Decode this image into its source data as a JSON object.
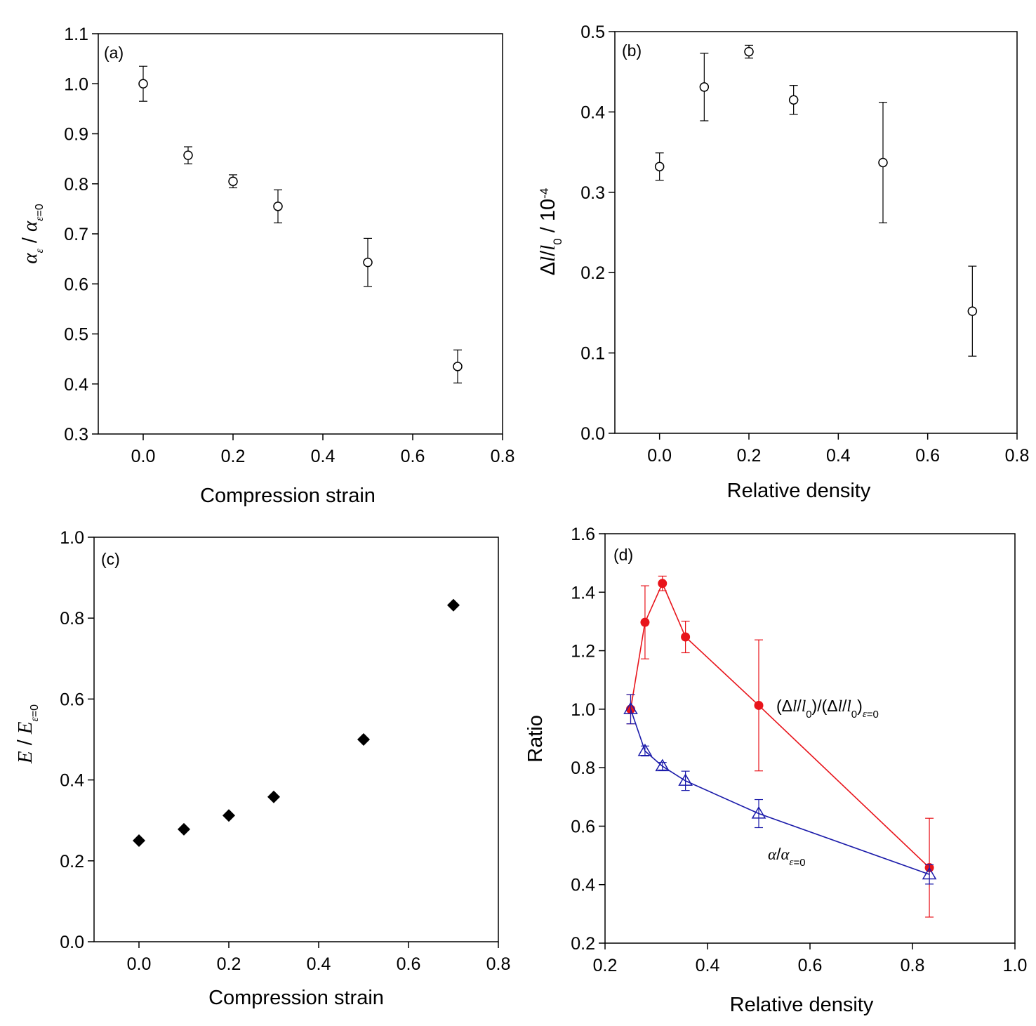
{
  "chart_data": [
    {
      "type": "scatter",
      "panel_label": "(a)",
      "xlabel": "Compression strain",
      "ylabel": "α_ε / α_ε=0",
      "xlim": [
        -0.1,
        0.8
      ],
      "ylim": [
        0.3,
        1.1
      ],
      "xticks": [
        "0.0",
        "0.2",
        "0.4",
        "0.6",
        "0.8"
      ],
      "yticks": [
        "0.3",
        "0.4",
        "0.5",
        "0.6",
        "0.7",
        "0.8",
        "0.9",
        "1.0",
        "1.1"
      ],
      "series": [
        {
          "marker": "open-circle",
          "x": [
            0.0,
            0.1,
            0.2,
            0.3,
            0.5,
            0.7
          ],
          "y": [
            1.0,
            0.857,
            0.805,
            0.755,
            0.643,
            0.435
          ],
          "err": [
            0.035,
            0.017,
            0.013,
            0.033,
            0.048,
            0.033
          ]
        }
      ]
    },
    {
      "type": "scatter",
      "panel_label": "(b)",
      "xlabel": "Relative density",
      "ylabel": "Δl/l0 / 10-4",
      "xlim": [
        -0.1,
        0.8
      ],
      "ylim": [
        0.0,
        0.5
      ],
      "xticks": [
        "0.0",
        "0.2",
        "0.4",
        "0.6",
        "0.8"
      ],
      "yticks": [
        "0.0",
        "0.1",
        "0.2",
        "0.3",
        "0.4",
        "0.5"
      ],
      "series": [
        {
          "marker": "open-circle",
          "x": [
            0.0,
            0.1,
            0.2,
            0.3,
            0.5,
            0.7
          ],
          "y": [
            0.332,
            0.431,
            0.475,
            0.415,
            0.337,
            0.152
          ],
          "err": [
            0.017,
            0.042,
            0.008,
            0.018,
            0.075,
            0.056
          ]
        }
      ]
    },
    {
      "type": "scatter",
      "panel_label": "(c)",
      "xlabel": "Compression strain",
      "ylabel": "E / E_ε=0",
      "xlim": [
        -0.1,
        0.8
      ],
      "ylim": [
        0.0,
        1.0
      ],
      "xticks": [
        "0.0",
        "0.2",
        "0.4",
        "0.6",
        "0.8"
      ],
      "yticks": [
        "0.0",
        "0.2",
        "0.4",
        "0.6",
        "0.8",
        "1.0"
      ],
      "series": [
        {
          "marker": "filled-diamond",
          "x": [
            0.0,
            0.1,
            0.2,
            0.3,
            0.5,
            0.7
          ],
          "y": [
            0.25,
            0.278,
            0.312,
            0.358,
            0.5,
            0.832
          ]
        }
      ]
    },
    {
      "type": "line",
      "panel_label": "(d)",
      "xlabel": "Relative density",
      "ylabel": "Ratio",
      "xlim": [
        0.2,
        1.0
      ],
      "ylim": [
        0.2,
        1.6
      ],
      "xticks": [
        "0.2",
        "0.4",
        "0.6",
        "0.8",
        "1.0"
      ],
      "yticks": [
        "0.2",
        "0.4",
        "0.6",
        "0.8",
        "1.0",
        "1.2",
        "1.4",
        "1.6"
      ],
      "series": [
        {
          "name": "(Δl/l0)/(Δl/l0)ε=0",
          "color": "#e8141b",
          "marker": "filled-circle",
          "x": [
            0.25,
            0.278,
            0.312,
            0.357,
            0.5,
            0.833
          ],
          "y": [
            1.0,
            1.297,
            1.43,
            1.247,
            1.013,
            0.458
          ],
          "err": [
            0.05,
            0.125,
            0.025,
            0.054,
            0.224,
            0.169
          ]
        },
        {
          "name": "α/α ε=0",
          "color": "#1b1baa",
          "marker": "open-triangle",
          "x": [
            0.25,
            0.278,
            0.312,
            0.357,
            0.5,
            0.833
          ],
          "y": [
            1.0,
            0.857,
            0.805,
            0.755,
            0.643,
            0.435
          ],
          "err": [
            0.05,
            0.017,
            0.013,
            0.033,
            0.048,
            0.033
          ]
        }
      ]
    }
  ]
}
